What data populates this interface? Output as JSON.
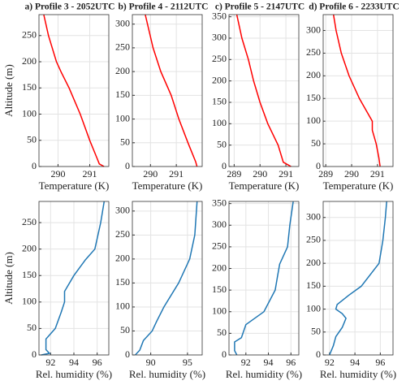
{
  "chart_data": [
    {
      "type": "line",
      "title": "a) Profile 3 - 2052UTC",
      "x_label": "Temperature (K)",
      "y_label": "Altitude (m)",
      "grid": true,
      "xlim": [
        289.4,
        291.6
      ],
      "xticks": [
        290,
        291
      ],
      "ylim": [
        0,
        290
      ],
      "yticks": [
        0,
        50,
        100,
        150,
        200,
        250
      ],
      "series": [
        {
          "color": "#ff0000",
          "x": [
            289.55,
            289.7,
            289.95,
            290.1,
            290.35,
            290.7,
            291.0,
            291.2,
            291.3,
            291.45
          ],
          "values": [
            290,
            250,
            200,
            180,
            150,
            100,
            50,
            20,
            5,
            0
          ]
        }
      ]
    },
    {
      "type": "line",
      "title": "b) Profile 4 - 2112UTC",
      "x_label": "Temperature (K)",
      "grid": true,
      "xlim": [
        289.3,
        292
      ],
      "xticks": [
        290,
        291
      ],
      "ylim": [
        0,
        320
      ],
      "yticks": [
        0,
        50,
        100,
        150,
        200,
        250,
        300
      ],
      "series": [
        {
          "color": "#ff0000",
          "x": [
            289.8,
            290.1,
            290.4,
            290.8,
            291.1,
            291.45,
            291.75,
            291.8
          ],
          "values": [
            320,
            250,
            200,
            150,
            100,
            50,
            10,
            0
          ]
        }
      ]
    },
    {
      "type": "line",
      "title": "c) Profile 5 - 2147UTC",
      "x_label": "Temperature (K)",
      "grid": true,
      "xlim": [
        288.8,
        291.5
      ],
      "xticks": [
        289,
        290,
        291
      ],
      "ylim": [
        0,
        355
      ],
      "yticks": [
        0,
        50,
        100,
        150,
        200,
        250,
        300,
        350
      ],
      "series": [
        {
          "color": "#ff0000",
          "x": [
            289.1,
            289.3,
            289.55,
            289.75,
            289.8,
            290.0,
            290.3,
            290.7,
            290.9,
            291.2
          ],
          "values": [
            355,
            300,
            250,
            200,
            190,
            150,
            100,
            50,
            10,
            0
          ]
        }
      ]
    },
    {
      "type": "line",
      "title": "d) Profile 6 - 2233UTC",
      "x_label": "Temperature (K)",
      "grid": true,
      "xlim": [
        288.9,
        291.6
      ],
      "xticks": [
        289,
        290,
        291
      ],
      "ylim": [
        0,
        335
      ],
      "yticks": [
        0,
        50,
        100,
        150,
        200,
        250,
        300
      ],
      "series": [
        {
          "color": "#ff0000",
          "x": [
            289.3,
            289.4,
            289.6,
            289.9,
            290.3,
            290.7,
            290.8,
            290.8,
            290.95,
            291.05,
            291.1
          ],
          "values": [
            335,
            300,
            250,
            200,
            150,
            110,
            100,
            80,
            50,
            20,
            0
          ]
        }
      ]
    },
    {
      "type": "line",
      "x_label": "Rel. humidity (%)",
      "y_label": "Altitude (m)",
      "grid": true,
      "xlim": [
        91,
        97
      ],
      "xticks": [
        92,
        94,
        96
      ],
      "ylim": [
        0,
        290
      ],
      "yticks": [
        0,
        50,
        100,
        150,
        200,
        250
      ],
      "series": [
        {
          "color": "#1f77b4",
          "x": [
            96.6,
            96.3,
            95.8,
            95.0,
            94.0,
            93.2,
            93.2,
            92.9,
            92.4,
            91.6,
            91.6,
            91.9,
            91.2
          ],
          "values": [
            290,
            250,
            200,
            180,
            150,
            120,
            100,
            80,
            50,
            30,
            10,
            3,
            0
          ]
        }
      ]
    },
    {
      "type": "line",
      "x_label": "Rel. humidity (%)",
      "grid": true,
      "xlim": [
        87.5,
        97
      ],
      "xticks": [
        90,
        95
      ],
      "ylim": [
        0,
        320
      ],
      "yticks": [
        0,
        50,
        100,
        150,
        200,
        250,
        300
      ],
      "series": [
        {
          "color": "#1f77b4",
          "x": [
            96.3,
            96.0,
            95.3,
            93.8,
            91.8,
            90.8,
            90.2,
            89.0,
            88.5,
            87.9
          ],
          "values": [
            320,
            250,
            200,
            150,
            100,
            70,
            50,
            30,
            10,
            0
          ]
        }
      ]
    },
    {
      "type": "line",
      "x_label": "Rel. humidity (%)",
      "grid": true,
      "xlim": [
        90.5,
        96.7
      ],
      "xticks": [
        92,
        94,
        96
      ],
      "ylim": [
        0,
        355
      ],
      "yticks": [
        0,
        50,
        100,
        150,
        200,
        250,
        300,
        350
      ],
      "series": [
        {
          "color": "#1f77b4",
          "x": [
            96.2,
            95.9,
            95.7,
            95.0,
            94.8,
            94.6,
            93.6,
            92.0,
            91.6,
            91.0,
            91.0,
            91.2
          ],
          "values": [
            355,
            300,
            250,
            210,
            180,
            150,
            100,
            70,
            40,
            30,
            10,
            0
          ]
        }
      ]
    },
    {
      "type": "line",
      "x_label": "Rel. humidity (%)",
      "grid": true,
      "xlim": [
        91.5,
        97
      ],
      "xticks": [
        92,
        94,
        96
      ],
      "ylim": [
        0,
        335
      ],
      "yticks": [
        0,
        50,
        100,
        150,
        200,
        250,
        300
      ],
      "series": [
        {
          "color": "#1f77b4",
          "x": [
            96.5,
            96.4,
            96.2,
            95.9,
            94.5,
            93.5,
            92.6,
            92.5,
            93.0,
            93.3,
            93.0,
            92.5,
            92.3,
            92.0
          ],
          "values": [
            335,
            300,
            250,
            200,
            150,
            130,
            110,
            100,
            90,
            80,
            60,
            40,
            20,
            0
          ]
        }
      ]
    }
  ]
}
